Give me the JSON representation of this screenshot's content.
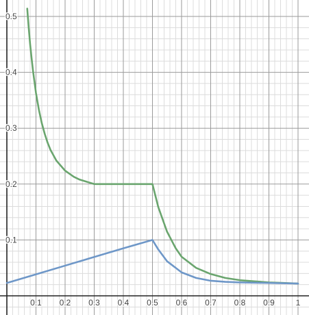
{
  "chart_data": {
    "type": "line",
    "title": "",
    "xlabel": "",
    "ylabel": "",
    "xlim": [
      0,
      1.015
    ],
    "ylim": [
      -0.023,
      0.515
    ],
    "grid": true,
    "major_step": 0.1,
    "minor_step": 0.02,
    "x_ticks": [
      {
        "value": 0.1,
        "label": "0.1"
      },
      {
        "value": 0.2,
        "label": "0.2"
      },
      {
        "value": 0.3,
        "label": "0.3"
      },
      {
        "value": 0.4,
        "label": "0.4"
      },
      {
        "value": 0.5,
        "label": "0.5"
      },
      {
        "value": 0.6,
        "label": "0.6"
      },
      {
        "value": 0.7,
        "label": "0.7"
      },
      {
        "value": 0.8,
        "label": "0.8"
      },
      {
        "value": 0.9,
        "label": "0.9"
      },
      {
        "value": 1.0,
        "label": "1"
      }
    ],
    "y_ticks": [
      {
        "value": 0.1,
        "label": "0.1"
      },
      {
        "value": 0.2,
        "label": "0.2"
      },
      {
        "value": 0.3,
        "label": "0.3"
      },
      {
        "value": 0.4,
        "label": "0.4"
      },
      {
        "value": 0.5,
        "label": "0.5"
      }
    ],
    "series": [
      {
        "color": "#6aa56e",
        "x": [
          0.07,
          0.075,
          0.08,
          0.085,
          0.09,
          0.1,
          0.11,
          0.12,
          0.13,
          0.14,
          0.15,
          0.17,
          0.2,
          0.23,
          0.25,
          0.3,
          0.35,
          0.4,
          0.45,
          0.5,
          0.52,
          0.55,
          0.58,
          0.6,
          0.65,
          0.7,
          0.75,
          0.8,
          0.85,
          0.9,
          0.95,
          1.0
        ],
        "y": [
          0.514,
          0.48,
          0.45,
          0.425,
          0.402,
          0.363,
          0.333,
          0.309,
          0.29,
          0.274,
          0.261,
          0.242,
          0.224,
          0.213,
          0.208,
          0.2,
          0.2,
          0.2,
          0.2,
          0.2,
          0.159,
          0.115,
          0.085,
          0.07,
          0.05,
          0.039,
          0.032,
          0.028,
          0.026,
          0.024,
          0.023,
          0.022
        ]
      },
      {
        "color": "#6e97c8",
        "x": [
          0.0,
          0.1,
          0.2,
          0.3,
          0.4,
          0.5,
          0.52,
          0.55,
          0.6,
          0.65,
          0.7,
          0.75,
          0.8,
          0.9,
          1.0
        ],
        "y": [
          0.023,
          0.0385,
          0.054,
          0.0695,
          0.085,
          0.1,
          0.083,
          0.062,
          0.042,
          0.032,
          0.027,
          0.025,
          0.024,
          0.023,
          0.022
        ]
      }
    ]
  }
}
